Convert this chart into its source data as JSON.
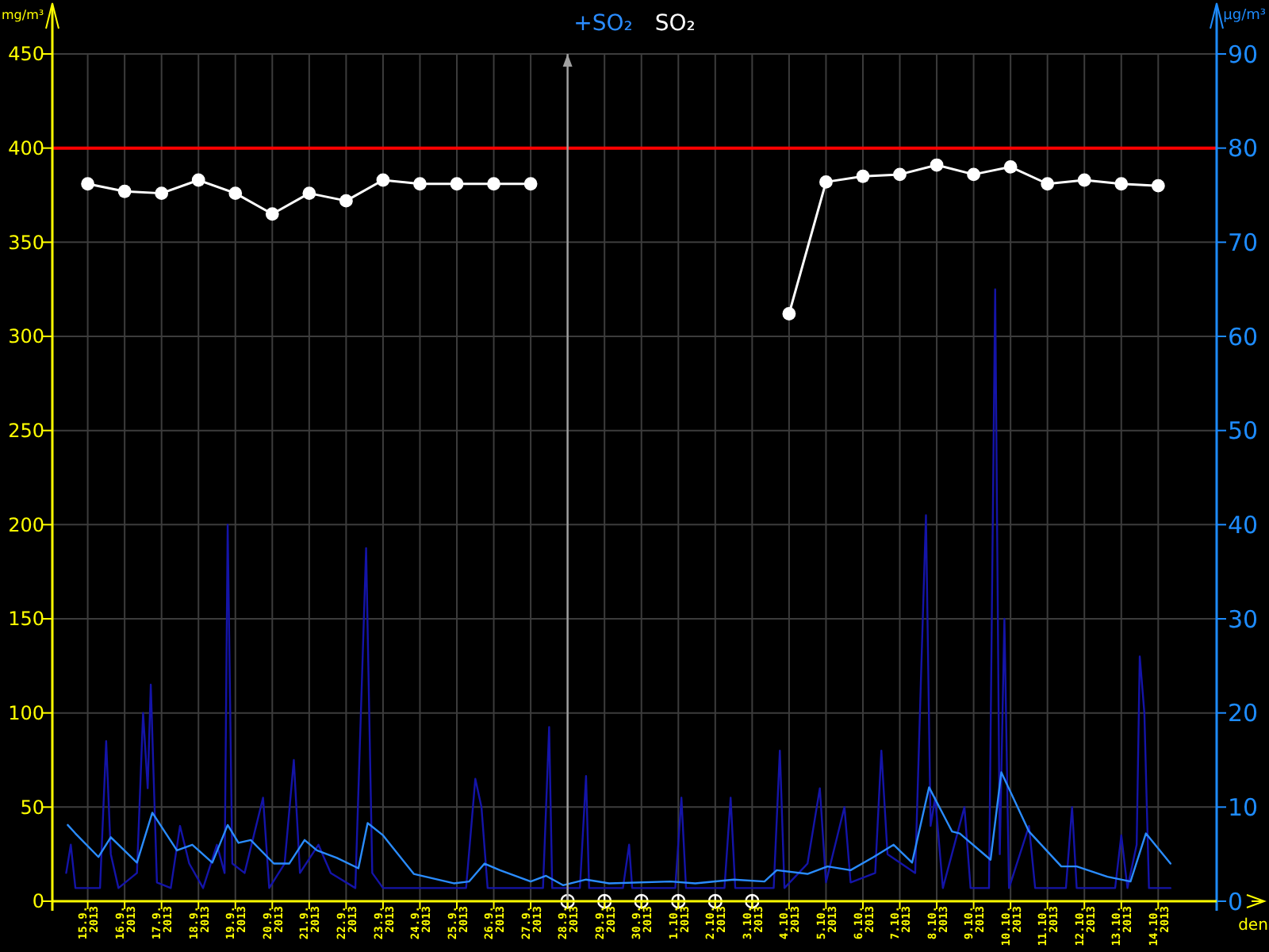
{
  "chart_data": {
    "type": "line",
    "legend": "top",
    "grid": true,
    "xlabel": "den",
    "ylabel": "mg/m³",
    "y2label": "µg/m³",
    "xlim": [
      "2013-09-14T01:00",
      "2013-10-15T14:00"
    ],
    "xticks": [
      {
        "value": "2013-09-15",
        "label": "15.9.\n2013"
      },
      {
        "value": "2013-09-16",
        "label": "16.9.\n2013"
      },
      {
        "value": "2013-09-17",
        "label": "17.9.\n2013"
      },
      {
        "value": "2013-09-18",
        "label": "18.9.\n2013"
      },
      {
        "value": "2013-09-19",
        "label": "19.9.\n2013"
      },
      {
        "value": "2013-09-20",
        "label": "20.9.\n2013"
      },
      {
        "value": "2013-09-21",
        "label": "21.9.\n2013"
      },
      {
        "value": "2013-09-22",
        "label": "22.9.\n2013"
      },
      {
        "value": "2013-09-23",
        "label": "23.9.\n2013"
      },
      {
        "value": "2013-09-24",
        "label": "24.9.\n2013"
      },
      {
        "value": "2013-09-25",
        "label": "25.9.\n2013"
      },
      {
        "value": "2013-09-26",
        "label": "26.9.\n2013"
      },
      {
        "value": "2013-09-27",
        "label": "27.9.\n2013"
      },
      {
        "value": "2013-09-28",
        "label": "28.9.\n2013"
      },
      {
        "value": "2013-09-29",
        "label": "29.9.\n2013"
      },
      {
        "value": "2013-09-30",
        "label": "30.9.\n2013"
      },
      {
        "value": "2013-10-01",
        "label": "1.10.\n2013"
      },
      {
        "value": "2013-10-02",
        "label": "2.10.\n2013"
      },
      {
        "value": "2013-10-03",
        "label": "3.10.\n2013"
      },
      {
        "value": "2013-10-04",
        "label": "4.10.\n2013"
      },
      {
        "value": "2013-10-05",
        "label": "5.10.\n2013"
      },
      {
        "value": "2013-10-06",
        "label": "6.10.\n2013"
      },
      {
        "value": "2013-10-07",
        "label": "7.10.\n2013"
      },
      {
        "value": "2013-10-08",
        "label": "8.10.\n2013"
      },
      {
        "value": "2013-10-09",
        "label": "9.10.\n2013"
      },
      {
        "value": "2013-10-10",
        "label": "10.10.\n2013"
      },
      {
        "value": "2013-10-11",
        "label": "11.10.\n2013"
      },
      {
        "value": "2013-10-12",
        "label": "12.10.\n2013"
      },
      {
        "value": "2013-10-13",
        "label": "13.10.\n2013"
      },
      {
        "value": "2013-10-14",
        "label": "14.10.\n2013"
      }
    ],
    "ylim": [
      0,
      450
    ],
    "yticks": [
      0,
      50,
      100,
      150,
      200,
      250,
      300,
      350,
      400,
      450
    ],
    "y2lim": [
      0,
      90
    ],
    "y2ticks": [
      0,
      10,
      20,
      30,
      40,
      50,
      60,
      70,
      80,
      90
    ],
    "ref_lines": [
      {
        "axis": "y",
        "value": 400,
        "color": "#ff0000"
      },
      {
        "axis": "x",
        "value": "2013-09-28",
        "color": "#a0a0a0"
      }
    ],
    "series": [
      {
        "color": "#1414a8",
        "axis": "y2",
        "marker": "none",
        "x": [
          "2013-09-14T10:00",
          "2013-09-14T13:00",
          "2013-09-14T16:00",
          "2013-09-15T08:00",
          "2013-09-15T12:00",
          "2013-09-15T15:00",
          "2013-09-15T20:00",
          "2013-09-16T08:00",
          "2013-09-16T12:00",
          "2013-09-16T15:00",
          "2013-09-16T17:00",
          "2013-09-16T21:00",
          "2013-09-17T06:00",
          "2013-09-17T12:00",
          "2013-09-17T18:00",
          "2013-09-18T03:00",
          "2013-09-18T12:00",
          "2013-09-18T17:00",
          "2013-09-18T19:00",
          "2013-09-18T22:00",
          "2013-09-19T06:00",
          "2013-09-19T18:00",
          "2013-09-19T22:00",
          "2013-09-20T08:00",
          "2013-09-20T14:00",
          "2013-09-20T18:00",
          "2013-09-21T06:00",
          "2013-09-21T14:00",
          "2013-09-22T06:00",
          "2013-09-22T13:00",
          "2013-09-22T17:00",
          "2013-09-23T00:00",
          "2013-09-25T06:00",
          "2013-09-25T12:00",
          "2013-09-25T16:00",
          "2013-09-25T20:00",
          "2013-09-27T08:00",
          "2013-09-27T12:00",
          "2013-09-27T14:00",
          "2013-09-28T08:00",
          "2013-09-28T12:00",
          "2013-09-28T14:00",
          "2013-09-29T12:00",
          "2013-09-29T16:00",
          "2013-09-29T18:00",
          "2013-09-30T22:00",
          "2013-10-01T02:00",
          "2013-10-01T05:00",
          "2013-10-02T06:00",
          "2013-10-02T10:00",
          "2013-10-02T13:00",
          "2013-10-03T14:00",
          "2013-10-03T18:00",
          "2013-10-03T21:00",
          "2013-10-04T12:00",
          "2013-10-04T20:00",
          "2013-10-05T00:00",
          "2013-10-05T12:00",
          "2013-10-05T16:00",
          "2013-10-06T08:00",
          "2013-10-06T12:00",
          "2013-10-06T16:00",
          "2013-10-07T10:00",
          "2013-10-07T14:00",
          "2013-10-07T17:00",
          "2013-10-07T20:00",
          "2013-10-07T23:00",
          "2013-10-08T04:00",
          "2013-10-08T18:00",
          "2013-10-08T22:00",
          "2013-10-09T10:00",
          "2013-10-09T14:00",
          "2013-10-09T17:00",
          "2013-10-09T20:00",
          "2013-10-09T23:00",
          "2013-10-10T12:00",
          "2013-10-10T16:00",
          "2013-10-11T12:00",
          "2013-10-11T16:00",
          "2013-10-11T19:00",
          "2013-10-12T20:00",
          "2013-10-13T00:00",
          "2013-10-13T04:00",
          "2013-10-13T10:00",
          "2013-10-13T12:00",
          "2013-10-13T15:00",
          "2013-10-13T18:00",
          "2013-10-14T08:00"
        ],
        "values": [
          3,
          6,
          1.4,
          1.4,
          17,
          5,
          1.4,
          3,
          20,
          12,
          23,
          2,
          1.4,
          8,
          4,
          1.4,
          6,
          3,
          40,
          4,
          3,
          11,
          1.4,
          4,
          15,
          3,
          6,
          3,
          1.4,
          37.5,
          3,
          1.4,
          1.4,
          13,
          10,
          1.4,
          1.4,
          18.5,
          1.4,
          1.4,
          13.3,
          1.4,
          1.4,
          6,
          1.4,
          1.4,
          11,
          1.4,
          1.4,
          11,
          1.4,
          1.4,
          16,
          1.4,
          4,
          12,
          2,
          10,
          2,
          3,
          16,
          5,
          3,
          25,
          41,
          8,
          11,
          1.4,
          10,
          1.4,
          1.4,
          65,
          5,
          30,
          1.4,
          8,
          1.4,
          1.4,
          10,
          1.4,
          1.4,
          7,
          1.4,
          6,
          26,
          20,
          1.4,
          1.4
        ]
      },
      {
        "name": "+SO₂",
        "color": "#2a8cff",
        "axis": "y2",
        "marker": "none",
        "x": [
          "2013-09-14T11:00",
          "2013-09-14T16:00",
          "2013-09-15T07:00",
          "2013-09-15T15:00",
          "2013-09-16T08:00",
          "2013-09-16T18:00",
          "2013-09-17T10:00",
          "2013-09-17T20:00",
          "2013-09-18T09:00",
          "2013-09-18T19:00",
          "2013-09-19T02:00",
          "2013-09-19T10:00",
          "2013-09-20T01:00",
          "2013-09-20T11:00",
          "2013-09-20T21:00",
          "2013-09-21T05:00",
          "2013-09-21T18:00",
          "2013-09-22T08:00",
          "2013-09-22T14:00",
          "2013-09-23T00:00",
          "2013-09-23T20:00",
          "2013-09-24T22:00",
          "2013-09-25T08:00",
          "2013-09-25T18:00",
          "2013-09-26T04:00",
          "2013-09-27T00:00",
          "2013-09-27T10:00",
          "2013-09-27T21:00",
          "2013-09-28T12:00",
          "2013-09-29T03:00",
          "2013-09-30T19:00",
          "2013-10-01T11:00",
          "2013-10-02T12:00",
          "2013-10-03T08:00",
          "2013-10-03T16:00",
          "2013-10-04T12:00",
          "2013-10-05T01:00",
          "2013-10-05T16:00",
          "2013-10-06T07:00",
          "2013-10-06T20:00",
          "2013-10-07T08:00",
          "2013-10-07T19:00",
          "2013-10-08T10:00",
          "2013-10-08T15:00",
          "2013-10-09T11:00",
          "2013-10-09T18:00",
          "2013-10-10T12:00",
          "2013-10-11T09:00",
          "2013-10-11T19:00",
          "2013-10-12T15:00",
          "2013-10-13T06:00",
          "2013-10-13T16:00",
          "2013-10-14T08:00"
        ],
        "values": [
          8.1,
          7.2,
          4.7,
          6.8,
          4.1,
          9.4,
          5.4,
          6,
          4.1,
          8.1,
          6.2,
          6.5,
          4,
          4,
          6.5,
          5.4,
          4.6,
          3.5,
          8.3,
          7,
          2.9,
          1.9,
          2.1,
          4,
          3.3,
          2.1,
          2.7,
          1.7,
          2.3,
          1.9,
          2.1,
          1.9,
          2.3,
          2.1,
          3.3,
          2.9,
          3.7,
          3.3,
          4.7,
          6,
          4.1,
          12.1,
          7.4,
          7.2,
          4.4,
          13.7,
          7.4,
          3.7,
          3.7,
          2.6,
          2.1,
          7.2,
          4
        ]
      },
      {
        "type": "scatter",
        "color": "#ffffff",
        "axis": "y",
        "marker": "cross",
        "x": [
          "2013-09-28",
          "2013-09-29",
          "2013-09-30",
          "2013-10-01",
          "2013-10-02",
          "2013-10-03"
        ],
        "values": [
          0,
          0,
          0,
          0,
          0,
          0
        ]
      },
      {
        "name": "SO₂",
        "color": "#ffffff",
        "axis": "y",
        "marker": "circle",
        "x": [
          "2013-09-15",
          "2013-09-16",
          "2013-09-17",
          "2013-09-18",
          "2013-09-19",
          "2013-09-20",
          "2013-09-21",
          "2013-09-22",
          "2013-09-23",
          "2013-09-24",
          "2013-09-25",
          "2013-09-26",
          "2013-09-27",
          "2013-09-28",
          "2013-09-29",
          "2013-09-30",
          "2013-10-01",
          "2013-10-02",
          "2013-10-03",
          "2013-10-04",
          "2013-10-05",
          "2013-10-06",
          "2013-10-07",
          "2013-10-08",
          "2013-10-09",
          "2013-10-10",
          "2013-10-11",
          "2013-10-12",
          "2013-10-13",
          "2013-10-14"
        ],
        "values": [
          381,
          377,
          376,
          383,
          376,
          365,
          376,
          372,
          383,
          381,
          381,
          381,
          381,
          null,
          null,
          null,
          null,
          null,
          null,
          312,
          382,
          385,
          386,
          391,
          386,
          390,
          381,
          383,
          381,
          380
        ]
      }
    ]
  }
}
